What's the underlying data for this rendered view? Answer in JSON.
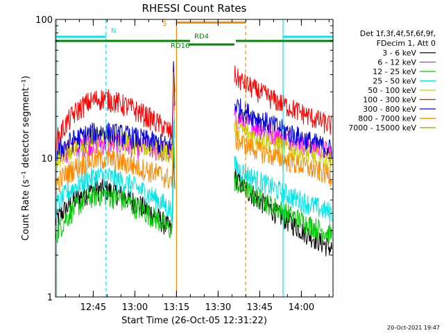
{
  "chart_data": {
    "type": "line",
    "title": "RHESSI Count Rates",
    "xlabel": "Start Time (26-Oct-05 12:31:22)",
    "ylabel": "Count Rate (s⁻¹ detector segment⁻¹)",
    "ylog": true,
    "ylim": [
      1,
      100
    ],
    "xlim_minutes": [
      0,
      100
    ],
    "x_ticks": [
      {
        "label": "12:45",
        "min": 13.6
      },
      {
        "label": "13:00",
        "min": 28.6
      },
      {
        "label": "13:15",
        "min": 43.6
      },
      {
        "label": "13:30",
        "min": 58.6
      },
      {
        "label": "13:45",
        "min": 73.6
      },
      {
        "label": "14:00",
        "min": 88.6
      }
    ],
    "y_ticks": [
      {
        "label": "1",
        "value": 1
      },
      {
        "label": "10",
        "value": 10
      },
      {
        "label": "100",
        "value": 100
      }
    ],
    "legend_header": [
      "Det 1f,3f,4f,5f,6f,9f,",
      "FDecim 1, Att 0"
    ],
    "series": [
      {
        "name": "3 - 6 keV",
        "color": "#000000",
        "start": 3.5,
        "peak": 6.0,
        "preEnd": 3.0,
        "postStart": 7.5,
        "postEnd": 2.2
      },
      {
        "name": "6 - 12 keV",
        "color": "#ff00ff",
        "start": 10.5,
        "peak": 13.0,
        "preEnd": 11.0,
        "postStart": 20.0,
        "postEnd": 11.0
      },
      {
        "name": "12 - 25 keV",
        "color": "#00cc00",
        "start": 2.8,
        "peak": 5.5,
        "preEnd": 3.0,
        "postStart": 7.0,
        "postEnd": 2.8
      },
      {
        "name": "25 - 50 keV",
        "color": "#00e5e5",
        "start": 4.5,
        "peak": 7.5,
        "preEnd": 4.2,
        "postStart": 9.0,
        "postEnd": 4.0
      },
      {
        "name": "50 - 100 keV",
        "color": "#cccc00",
        "start": 10.0,
        "peak": 14.0,
        "preEnd": 11.0,
        "postStart": 17.0,
        "postEnd": 9.5
      },
      {
        "name": "100 - 300 keV",
        "color": "#ff0000",
        "start": 13.0,
        "peak": 27.0,
        "preEnd": 15.0,
        "postStart": 40.0,
        "postEnd": 17.0
      },
      {
        "name": "300 - 800 keV",
        "color": "#0000dd",
        "start": 11.0,
        "peak": 15.5,
        "preEnd": 12.0,
        "postStart": 25.0,
        "postEnd": 11.5
      },
      {
        "name": "800 - 7000 keV",
        "color": "#ff8800",
        "start": 6.5,
        "peak": 10.0,
        "preEnd": 7.0,
        "postStart": 14.0,
        "postEnd": 7.5
      },
      {
        "name": "7000 - 15000 keV",
        "color": "#999900",
        "start": 0,
        "peak": 0,
        "preEnd": 0,
        "postStart": 0,
        "postEnd": 0
      }
    ],
    "flare_spike": {
      "min": 42.5,
      "value": 50
    },
    "gap_minutes": [
      43.6,
      64.5
    ],
    "flags": [
      {
        "label": "N",
        "color": "#00e5e5",
        "y_value": 75,
        "segments": [
          [
            0,
            18.2
          ],
          [
            82,
            100
          ]
        ]
      },
      {
        "label": "S",
        "color": "#ff8800",
        "y_value": 95,
        "segments": [
          [
            43.6,
            68.5
          ]
        ]
      },
      {
        "label": "RD4",
        "color": "#008800",
        "y_value": 70,
        "segments": [
          [
            0,
            48.5
          ],
          [
            65,
            100
          ]
        ]
      },
      {
        "label": "RD16",
        "color": "#008800",
        "y_value": 66,
        "segments": [
          [
            48,
            64.5
          ]
        ]
      }
    ],
    "vlines": [
      {
        "min": 18.2,
        "color": "#00e5e5",
        "dash": true
      },
      {
        "min": 82.0,
        "color": "#00e5e5",
        "dash": false
      },
      {
        "min": 100,
        "color": "#00e5e5",
        "dash": true
      },
      {
        "min": 43.6,
        "color": "#ff8800",
        "dash": false
      },
      {
        "min": 68.5,
        "color": "#ff8800",
        "dash": true
      },
      {
        "min": 0.4,
        "color": "#00e5e5",
        "dash": false
      }
    ]
  },
  "footer": {
    "timestamp": "20-Oct-2021 19:47"
  }
}
